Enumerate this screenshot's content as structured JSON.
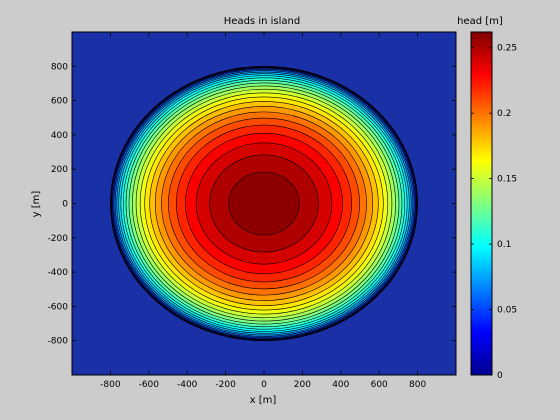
{
  "figure": {
    "background": "#cccccc"
  },
  "chart_data": {
    "type": "heatmap",
    "subtype": "filled-contour",
    "title": "Heads in island",
    "xlabel": "x [m]",
    "ylabel": "y [m]",
    "xlim": [
      -1000,
      1000
    ],
    "ylim": [
      -1000,
      1000
    ],
    "xticks": [
      -800,
      -600,
      -400,
      -200,
      0,
      200,
      400,
      600,
      800
    ],
    "yticks": [
      -800,
      -600,
      -400,
      -200,
      0,
      200,
      400,
      600,
      800
    ],
    "xtick_labels": [
      "-800",
      "-600",
      "-400",
      "-200",
      "0",
      "200",
      "400",
      "600",
      "800"
    ],
    "ytick_labels": [
      "800",
      "600",
      "400",
      "200",
      "0",
      "-200",
      "-400",
      "-600",
      "-800"
    ],
    "grid": false,
    "colormap": "jet",
    "colormap_stops": [
      "#00008f",
      "#0000ff",
      "#00ffff",
      "#ffff00",
      "#ff0000",
      "#800000"
    ],
    "outside_color": "#1930a6",
    "island": {
      "center": [
        0,
        0
      ],
      "semi_axis_x": 800,
      "semi_axis_y": 800,
      "head_max": 0.262,
      "head_at_boundary": 0
    },
    "contour_levels": [
      0.005,
      0.015,
      0.025,
      0.035,
      0.045,
      0.055,
      0.065,
      0.075,
      0.085,
      0.095,
      0.105,
      0.115,
      0.125,
      0.135,
      0.145,
      0.155,
      0.165,
      0.175,
      0.185,
      0.195,
      0.205,
      0.215,
      0.225,
      0.235,
      0.245,
      0.255
    ],
    "colorbar": {
      "label": "head [m]",
      "range": [
        0,
        0.262
      ],
      "ticks": [
        0,
        0.05,
        0.1,
        0.15,
        0.2,
        0.25
      ],
      "tick_labels": [
        "0",
        "0.05",
        "0.1",
        "0.15",
        "0.2",
        "0.25"
      ]
    }
  }
}
